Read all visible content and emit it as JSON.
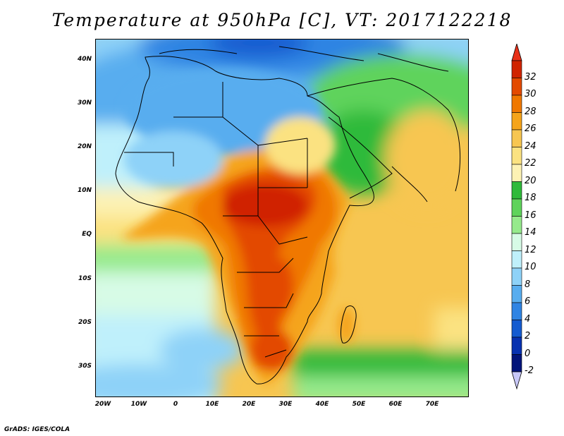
{
  "title": "Temperature at 950hPa [C], VT: 2017122218",
  "credit": "GrADS: IGES/COLA",
  "map": {
    "region": "Africa, Arabian Peninsula and western Indian Ocean",
    "lon_range": [
      -20,
      80
    ],
    "lat_range": [
      -37,
      46
    ],
    "variable": "temperature at 950hPa",
    "units": "C",
    "lat_ticks": [
      "40N",
      "30N",
      "20N",
      "10N",
      "EQ",
      "10S",
      "20S",
      "30S"
    ],
    "lon_ticks": [
      "20W",
      "10W",
      "0",
      "10E",
      "20E",
      "30E",
      "40E",
      "50E",
      "60E",
      "70E"
    ]
  },
  "colorbar": {
    "labels": [
      "32",
      "30",
      "28",
      "26",
      "24",
      "22",
      "20",
      "18",
      "16",
      "14",
      "12",
      "10",
      "8",
      "6",
      "4",
      "2",
      "0",
      "-2"
    ],
    "colors": [
      "#d02400",
      "#e34a00",
      "#f07800",
      "#f5a41a",
      "#f7c651",
      "#fbe281",
      "#fdf2b4",
      "#2fba3a",
      "#5fd35b",
      "#96ea8c",
      "#d7fbe6",
      "#bff0fb",
      "#8ed2f8",
      "#58adef",
      "#2f84e3",
      "#145bd0",
      "#0731b0",
      "#02147a"
    ],
    "top_arrow_color": "#e83018",
    "bottom_arrow_color": "#c8c8f8"
  }
}
